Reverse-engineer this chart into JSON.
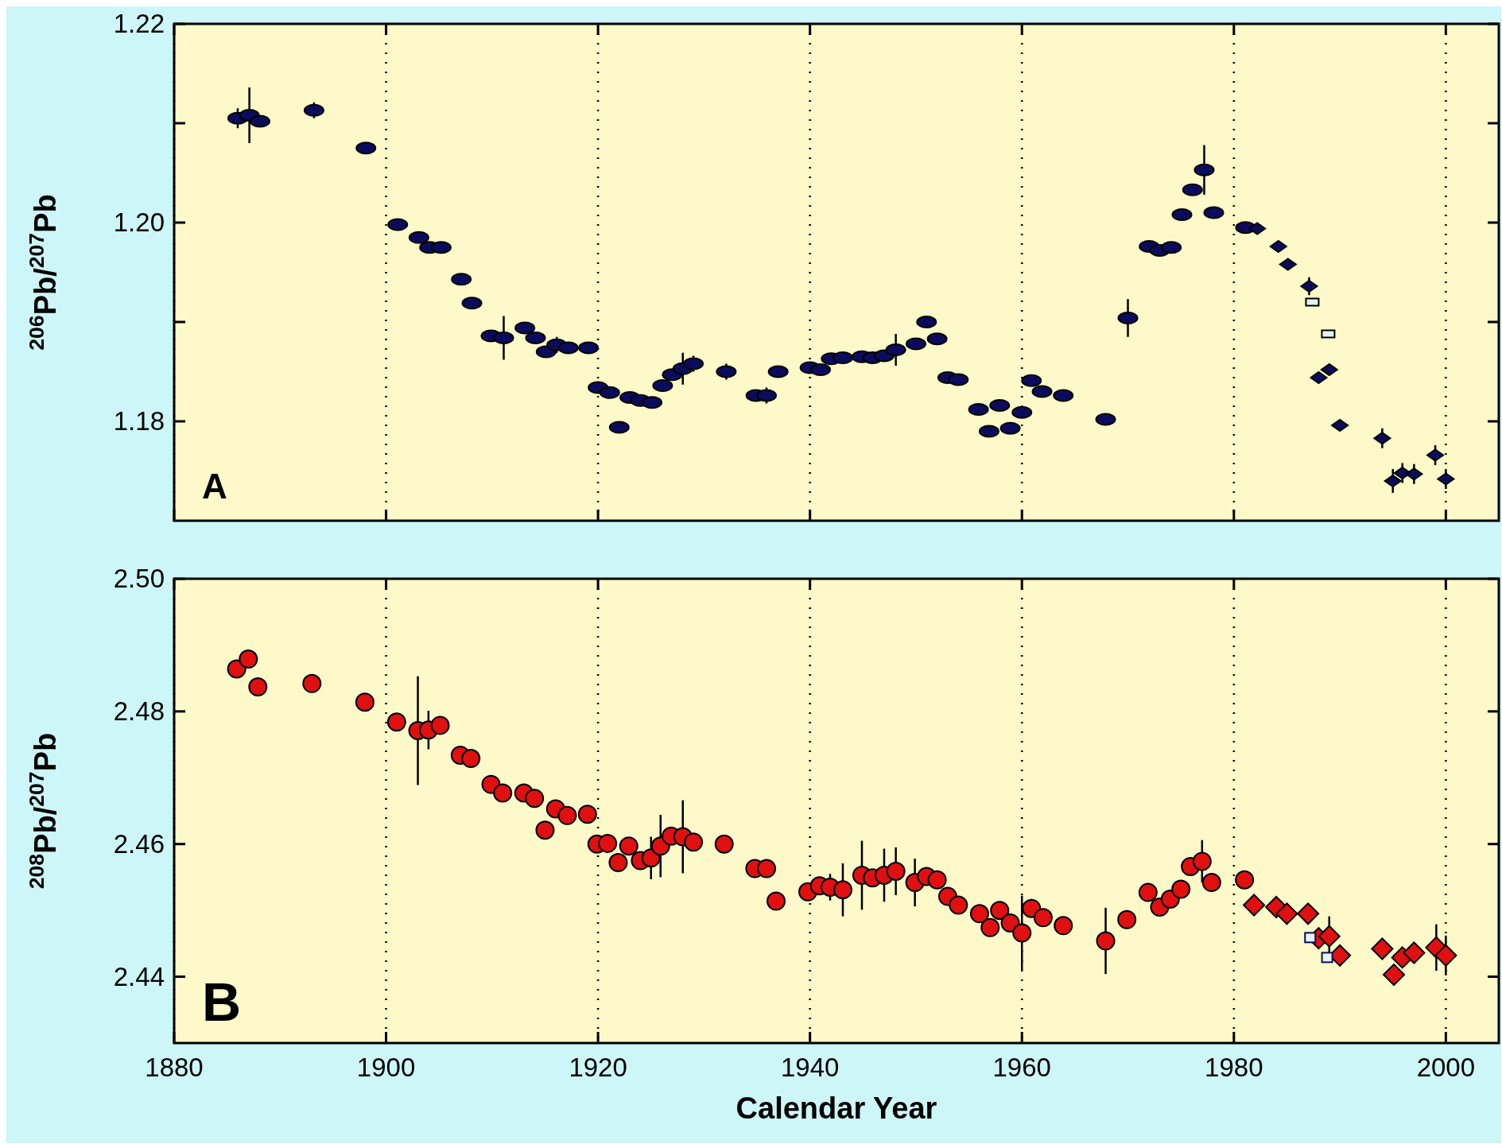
{
  "chart_data": [
    {
      "type": "scatter",
      "ylabel": "$^{206}$Pb/$^{207}$Pb",
      "annotations": [
        "A"
      ],
      "xlim": [
        1880,
        2005
      ],
      "xticks": [
        1880,
        1900,
        1920,
        1940,
        1960,
        1980,
        2000
      ],
      "ylim": [
        1.17,
        1.22
      ],
      "yticks": [
        {
          "value": 1.18,
          "label": "1.18"
        },
        {
          "value": 1.19,
          "label": null
        },
        {
          "value": 1.2,
          "label": "1.20"
        },
        {
          "value": 1.21,
          "label": null
        },
        {
          "value": 1.22,
          "label": "1.22"
        }
      ],
      "grid": "x",
      "tick_labels": "y",
      "series": [
        {
          "marker": "circle",
          "color": "#0b0b5e",
          "x": [
            1886.0,
            1887.1,
            1888.1,
            1893.2,
            1898.1,
            1901.1,
            1903.1,
            1904.1,
            1905.2,
            1907.1,
            1908.1,
            1909.9,
            1911.1,
            1913.1,
            1914.1,
            1915.1,
            1916.1,
            1917.2,
            1919.1,
            1920.0,
            1921.1,
            1922.0,
            1923.0,
            1924.0,
            1925.1,
            1926.1,
            1927.0,
            1928.0,
            1929.0,
            1932.1,
            1934.9,
            1935.9,
            1937.0,
            1940.0,
            1941.0,
            1942.0,
            1943.1,
            1944.9,
            1945.9,
            1947.0,
            1948.1,
            1950.0,
            1951.0,
            1952.0,
            1953.0,
            1954.0,
            1955.9,
            1956.9,
            1957.9,
            1958.9,
            1960.0,
            1960.9,
            1961.9,
            1963.9,
            1967.9,
            1970.0,
            1972.0,
            1973.0,
            1974.1,
            1975.1,
            1976.1,
            1977.2,
            1978.1,
            1981.1
          ],
          "values": [
            1.2105,
            1.2108,
            1.2102,
            1.2113,
            1.2075,
            1.1998,
            1.1985,
            1.1975,
            1.1975,
            1.1943,
            1.1919,
            1.1886,
            1.1884,
            1.1894,
            1.1884,
            1.187,
            1.1877,
            1.1874,
            1.1874,
            1.1834,
            1.1829,
            1.1794,
            1.1824,
            1.1821,
            1.1819,
            1.1836,
            1.1847,
            1.1853,
            1.1858,
            1.185,
            1.1826,
            1.1826,
            1.185,
            1.1854,
            1.1852,
            1.1863,
            1.1864,
            1.1865,
            1.1864,
            1.1866,
            1.1872,
            1.1878,
            1.19,
            1.1883,
            1.1844,
            1.1842,
            1.1812,
            1.179,
            1.1816,
            1.1793,
            1.1809,
            1.1841,
            1.183,
            1.1826,
            1.1802,
            1.1904,
            1.1976,
            1.1972,
            1.1975,
            1.2008,
            1.2033,
            1.2053,
            1.201,
            1.1995
          ],
          "errors": [
            0.001,
            0.0028,
            null,
            0.0008,
            null,
            null,
            null,
            null,
            null,
            null,
            null,
            null,
            0.0022,
            null,
            null,
            null,
            0.0008,
            null,
            null,
            null,
            null,
            null,
            null,
            null,
            null,
            null,
            null,
            0.0016,
            0.0008,
            0.0008,
            null,
            0.0008,
            null,
            null,
            null,
            null,
            null,
            null,
            null,
            null,
            0.0016,
            null,
            null,
            null,
            null,
            null,
            null,
            null,
            null,
            null,
            null,
            null,
            null,
            null,
            null,
            0.0019,
            null,
            null,
            null,
            null,
            null,
            0.0025,
            null,
            null
          ]
        },
        {
          "marker": "diamond",
          "color": "#0b0b5e",
          "x": [
            1982.2,
            1984.2,
            1985.1,
            1987.1,
            1988.0,
            1989.0,
            1990.0,
            1994.0,
            1995.0,
            1995.9,
            1997.0,
            1999.0,
            2000.0
          ],
          "values": [
            1.1994,
            1.1976,
            1.1958,
            1.1936,
            1.1844,
            1.1852,
            1.1796,
            1.1783,
            1.174,
            1.1748,
            1.1747,
            1.1766,
            1.1742
          ],
          "errors": [
            null,
            null,
            null,
            0.0009,
            null,
            null,
            null,
            0.001,
            0.0012,
            0.001,
            0.001,
            0.001,
            0.001
          ]
        },
        {
          "marker": "square",
          "color": "#e4f4f4",
          "x": [
            1987.4,
            1988.9
          ],
          "values": [
            1.192,
            1.1888
          ]
        }
      ]
    },
    {
      "type": "scatter",
      "ylabel": "$^{208}$Pb/$^{207}$Pb",
      "xlabel": "Calendar Year",
      "annotations": [
        "B"
      ],
      "xlim": [
        1880,
        2005
      ],
      "xticks": [
        1880,
        1900,
        1920,
        1940,
        1960,
        1980,
        2000
      ],
      "ylim": [
        2.43,
        2.5
      ],
      "yticks": [
        2.44,
        2.46,
        2.48,
        {
          "value": 2.5,
          "label": "2.50"
        }
      ],
      "grid": "x",
      "series": [
        {
          "marker": "circle",
          "color": "#e01010",
          "x": [
            1885.9,
            1887.0,
            1887.9,
            1893.0,
            1898.0,
            1901.0,
            1903.0,
            1904.0,
            1905.1,
            1907.0,
            1908.0,
            1909.9,
            1911.0,
            1913.0,
            1914.0,
            1915.0,
            1916.0,
            1917.1,
            1919.0,
            1919.9,
            1920.9,
            1921.9,
            1922.9,
            1924.0,
            1925.0,
            1925.9,
            1926.9,
            1928.0,
            1929.0,
            1931.9,
            1934.8,
            1935.9,
            1936.8,
            1939.8,
            1940.9,
            1941.9,
            1943.1,
            1944.9,
            1945.9,
            1947.0,
            1948.1,
            1949.9,
            1951.0,
            1952.0,
            1953.0,
            1954.0,
            1956.0,
            1957.0,
            1957.9,
            1958.9,
            1960.0,
            1960.9,
            1962.0,
            1963.9,
            1967.9,
            1969.9,
            1971.9,
            1973.0,
            1974.0,
            1975.0,
            1975.9,
            1977.0,
            1977.9,
            1981.0
          ],
          "values": [
            2.4864,
            2.4879,
            2.4837,
            2.4842,
            2.4814,
            2.4784,
            2.4771,
            2.4772,
            2.4779,
            2.4734,
            2.4729,
            2.469,
            2.4677,
            2.4677,
            2.4669,
            2.4621,
            2.4653,
            2.4643,
            2.4645,
            2.46,
            2.4601,
            2.4572,
            2.4597,
            2.4575,
            2.4579,
            2.4597,
            2.4612,
            2.4611,
            2.4603,
            2.46,
            2.4563,
            2.4563,
            2.4514,
            2.4528,
            2.4537,
            2.4535,
            2.4531,
            2.4553,
            2.4549,
            2.4553,
            2.4559,
            2.4542,
            2.4551,
            2.4546,
            2.4521,
            2.4508,
            2.4495,
            2.4474,
            2.45,
            2.4481,
            2.4466,
            2.4503,
            2.4489,
            2.4477,
            2.4454,
            2.4486,
            2.4527,
            2.4505,
            2.4517,
            2.4532,
            2.4566,
            2.4574,
            2.4542,
            2.4546
          ],
          "errors": [
            null,
            null,
            null,
            null,
            null,
            null,
            0.0082,
            0.0029,
            null,
            null,
            null,
            null,
            null,
            null,
            null,
            null,
            null,
            null,
            null,
            null,
            null,
            null,
            null,
            null,
            0.0032,
            0.0047,
            null,
            0.0055,
            null,
            null,
            null,
            null,
            null,
            null,
            null,
            0.002,
            0.004,
            0.0052,
            null,
            0.004,
            0.0036,
            0.0036,
            null,
            null,
            null,
            null,
            null,
            null,
            null,
            null,
            0.0056,
            null,
            null,
            null,
            0.005,
            null,
            null,
            null,
            null,
            null,
            null,
            0.0032,
            null,
            null
          ]
        },
        {
          "marker": "diamond",
          "color": "#e01010",
          "x": [
            1981.9,
            1984.0,
            1985.0,
            1987.0,
            1988.0,
            1989.0,
            1990.0,
            1994.0,
            1995.1,
            1995.9,
            1997.0,
            1999.1,
            2000.0
          ],
          "values": [
            2.4508,
            2.4505,
            2.4495,
            2.4495,
            2.4458,
            2.4461,
            2.4432,
            2.4442,
            2.4403,
            2.4429,
            2.4436,
            2.4444,
            2.4432
          ],
          "errors": [
            null,
            null,
            null,
            null,
            null,
            0.003,
            null,
            null,
            null,
            null,
            null,
            0.0035,
            0.003
          ]
        },
        {
          "marker": "square",
          "color": "#e4f4f4",
          "x": [
            1987.2,
            1988.8
          ],
          "values": [
            2.4459,
            2.4429
          ]
        }
      ]
    }
  ]
}
